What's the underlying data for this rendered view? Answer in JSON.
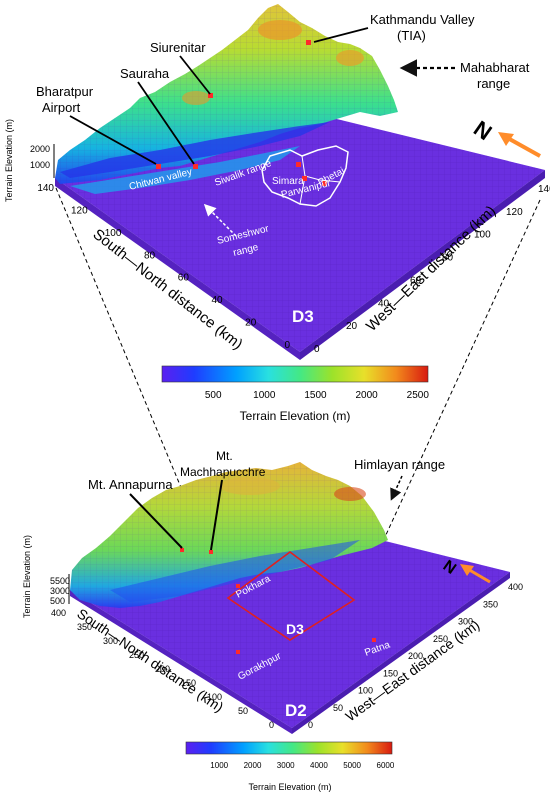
{
  "top_panel": {
    "elevation_axis": {
      "title": "Terrain Elevation (m)",
      "ticks": [
        "2000",
        "1000"
      ]
    },
    "south_north_axis": {
      "title": "South—North distance (km)",
      "ticks": [
        "140",
        "120",
        "100",
        "80",
        "60",
        "40",
        "20",
        "0"
      ]
    },
    "west_east_axis": {
      "title": "West—East distance (km)",
      "ticks": [
        "140",
        "120",
        "100",
        "80",
        "60",
        "40",
        "20",
        "0"
      ]
    },
    "domain_label": "D3",
    "north_label": "N",
    "annotations": {
      "kathmandu": "Kathmandu Valley",
      "kathmandu_sub": "(TIA)",
      "siurenitar": "Siurenitar",
      "sauraha": "Sauraha",
      "bharatpur_line1": "Bharatpur",
      "bharatpur_line2": "Airport",
      "mahabharat_line1": "Mahabharat",
      "mahabharat_line2": "range",
      "chitwan": "Chitwan valley",
      "siwalik": "Siwalik range",
      "simara": "Simara",
      "parwanipur": "Parwanipur",
      "phetai": "Phetai",
      "someshwor_line1": "Someshwor",
      "someshwor_line2": "range"
    },
    "colorbar": {
      "title": "Terrain Elevation (m)",
      "ticks": [
        "500",
        "1000",
        "1500",
        "2000",
        "2500"
      ]
    }
  },
  "bottom_panel": {
    "elevation_axis": {
      "title": "Terrain Elevation (m)",
      "ticks": [
        "5500",
        "3000",
        "500"
      ]
    },
    "south_north_axis": {
      "title": "South—North distance (km)",
      "ticks": [
        "400",
        "350",
        "300",
        "250",
        "200",
        "150",
        "100",
        "50",
        "0"
      ]
    },
    "west_east_axis": {
      "title": "West—East distance (km)",
      "ticks": [
        "400",
        "350",
        "300",
        "250",
        "200",
        "150",
        "100",
        "50",
        "0"
      ]
    },
    "domain_label": "D2",
    "inner_domain_label": "D3",
    "north_label": "N",
    "annotations": {
      "annapurna": "Mt. Annapurna",
      "machha_line1": "Mt.",
      "machha_line2": "Machhapucchre",
      "himlayan": "Himlayan range",
      "pokhara": "Pokhara",
      "gorakhpur": "Gorakhpur",
      "patna": "Patna"
    },
    "colorbar": {
      "title": "Terrain Elevation (m)",
      "ticks": [
        "1000",
        "2000",
        "3000",
        "4000",
        "5000",
        "6000"
      ]
    }
  },
  "colors": {
    "plain": "#6a2fe0",
    "colormap": [
      "#5b1ff0",
      "#1f3cff",
      "#00a0ff",
      "#29e0e0",
      "#44e884",
      "#9ce22a",
      "#e8e02a",
      "#f28a1c",
      "#d81a10"
    ],
    "marker": "#ff2a2a",
    "arrow": "#ff8c2a",
    "domain_box": "#e02020"
  }
}
